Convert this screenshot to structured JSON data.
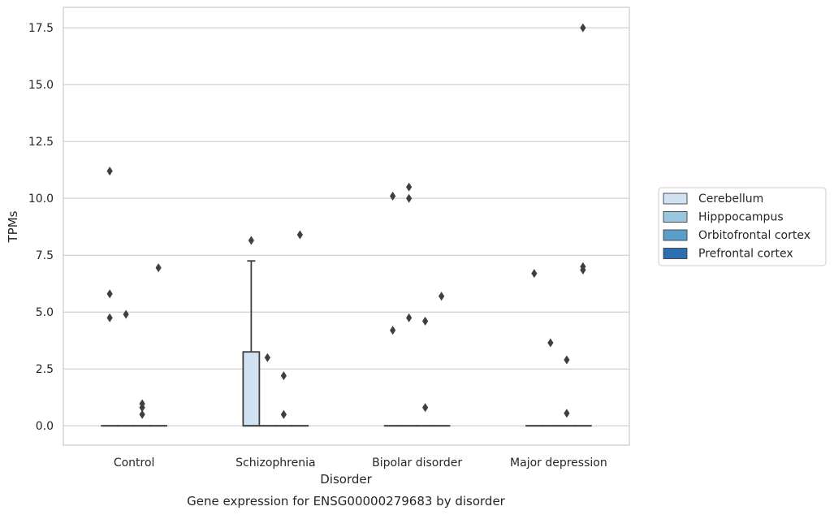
{
  "chart_data": {
    "type": "box",
    "caption": "Gene expression for ENSG00000279683 by disorder",
    "xlabel": "Disorder",
    "ylabel": "TPMs",
    "ylim": [
      -0.85,
      18.4
    ],
    "yticks": [
      0.0,
      2.5,
      5.0,
      7.5,
      10.0,
      12.5,
      15.0,
      17.5
    ],
    "ytick_labels": [
      "0.0",
      "2.5",
      "5.0",
      "7.5",
      "10.0",
      "12.5",
      "15.0",
      "17.5"
    ],
    "grid": "horizontal",
    "legend_position": "right",
    "categories": [
      "Control",
      "Schizophrenia",
      "Bipolar disorder",
      "Major depression"
    ],
    "series": [
      {
        "name": "Cerebellum",
        "color": "#d1e2f2",
        "boxes": [
          {
            "q1": 0,
            "median": 0,
            "q3": 0,
            "whisker_low": 0,
            "whisker_high": 0,
            "outliers": [
              11.2,
              5.8,
              4.75
            ]
          },
          {
            "q1": 0,
            "median": 0,
            "q3": 3.25,
            "whisker_low": 0,
            "whisker_high": 7.25,
            "outliers": [
              8.15
            ]
          },
          {
            "q1": 0,
            "median": 0,
            "q3": 0,
            "whisker_low": 0,
            "whisker_high": 0,
            "outliers": [
              10.1,
              4.2
            ]
          },
          {
            "q1": 0,
            "median": 0,
            "q3": 0,
            "whisker_low": 0,
            "whisker_high": 0,
            "outliers": [
              6.7
            ]
          }
        ]
      },
      {
        "name": "Hipppocampus",
        "color": "#9ac7e0",
        "boxes": [
          {
            "q1": 0,
            "median": 0,
            "q3": 0,
            "whisker_low": 0,
            "whisker_high": 0,
            "outliers": [
              4.9
            ]
          },
          {
            "q1": 0,
            "median": 0,
            "q3": 0,
            "whisker_low": 0,
            "whisker_high": 0,
            "outliers": [
              3.0
            ]
          },
          {
            "q1": 0,
            "median": 0,
            "q3": 0,
            "whisker_low": 0,
            "whisker_high": 0,
            "outliers": [
              10.5,
              10.0,
              4.75
            ]
          },
          {
            "q1": 0,
            "median": 0,
            "q3": 0,
            "whisker_low": 0,
            "whisker_high": 0,
            "outliers": [
              3.65
            ]
          }
        ]
      },
      {
        "name": "Orbitofrontal cortex",
        "color": "#5a9fcc",
        "boxes": [
          {
            "q1": 0,
            "median": 0,
            "q3": 0,
            "whisker_low": 0,
            "whisker_high": 0,
            "outliers": [
              0.97,
              0.8,
              0.5
            ]
          },
          {
            "q1": 0,
            "median": 0,
            "q3": 0,
            "whisker_low": 0,
            "whisker_high": 0,
            "outliers": [
              2.2,
              0.5
            ]
          },
          {
            "q1": 0,
            "median": 0,
            "q3": 0,
            "whisker_low": 0,
            "whisker_high": 0,
            "outliers": [
              4.6,
              0.8
            ]
          },
          {
            "q1": 0,
            "median": 0,
            "q3": 0,
            "whisker_low": 0,
            "whisker_high": 0,
            "outliers": [
              2.9,
              0.55
            ]
          }
        ]
      },
      {
        "name": "Prefrontal cortex",
        "color": "#2c6fb0",
        "boxes": [
          {
            "q1": 0,
            "median": 0,
            "q3": 0,
            "whisker_low": 0,
            "whisker_high": 0,
            "outliers": [
              6.95
            ]
          },
          {
            "q1": 0,
            "median": 0,
            "q3": 0,
            "whisker_low": 0,
            "whisker_high": 0,
            "outliers": [
              8.4
            ]
          },
          {
            "q1": 0,
            "median": 0,
            "q3": 0,
            "whisker_low": 0,
            "whisker_high": 0,
            "outliers": [
              5.7
            ]
          },
          {
            "q1": 0,
            "median": 0,
            "q3": 0,
            "whisker_low": 0,
            "whisker_high": 0,
            "outliers": [
              17.5,
              7.0,
              6.85
            ]
          }
        ]
      }
    ]
  }
}
